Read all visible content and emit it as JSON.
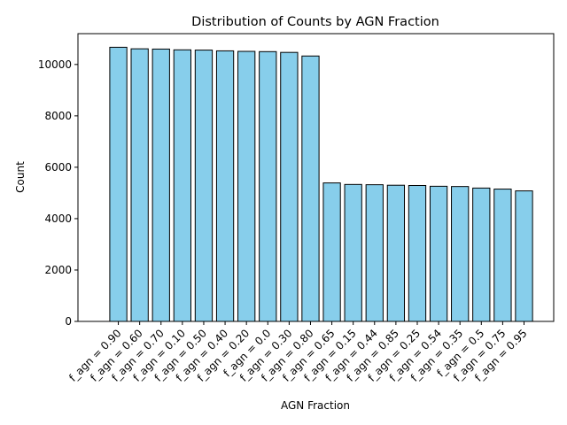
{
  "chart_data": {
    "type": "bar",
    "title": "Distribution of Counts by AGN Fraction",
    "xlabel": "AGN Fraction",
    "ylabel": "Count",
    "categories": [
      "f_agn = 0.90",
      "f_agn = 0.60",
      "f_agn = 0.70",
      "f_agn = 0.10",
      "f_agn = 0.50",
      "f_agn = 0.40",
      "f_agn = 0.20",
      "f_agn = 0.0",
      "f_agn = 0.30",
      "f_agn = 0.80",
      "f_agn = 0.65",
      "f_agn = 0.15",
      "f_agn = 0.44",
      "f_agn = 0.85",
      "f_agn = 0.25",
      "f_agn = 0.54",
      "f_agn = 0.35",
      "f_agn = 0.5",
      "f_agn = 0.75",
      "f_agn = 0.95"
    ],
    "values": [
      10670,
      10610,
      10600,
      10570,
      10560,
      10530,
      10510,
      10500,
      10470,
      10330,
      5390,
      5330,
      5320,
      5300,
      5290,
      5260,
      5250,
      5190,
      5150,
      5080
    ],
    "ylim": [
      0,
      11200
    ],
    "yticks": [
      0,
      2000,
      4000,
      6000,
      8000,
      10000
    ],
    "grid": false,
    "bar_color": "#87ceeb",
    "edge_color": "#000000"
  }
}
